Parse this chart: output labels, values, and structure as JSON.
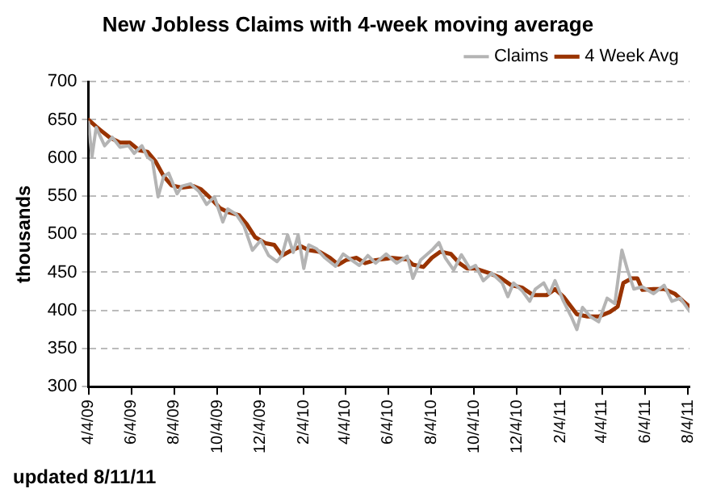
{
  "chart_data": {
    "type": "line",
    "title": "New Jobless Claims with 4-week moving average",
    "ylabel": "thousands",
    "xlim": [
      "2009-04-04",
      "2011-08-06"
    ],
    "xticks": [
      {
        "value": "2009-04-04",
        "label": "4/4/09"
      },
      {
        "value": "2009-06-04",
        "label": "6/4/09"
      },
      {
        "value": "2009-08-04",
        "label": "8/4/09"
      },
      {
        "value": "2009-10-04",
        "label": "10/4/09"
      },
      {
        "value": "2009-12-04",
        "label": "12/4/09"
      },
      {
        "value": "2010-02-04",
        "label": "2/4/10"
      },
      {
        "value": "2010-04-04",
        "label": "4/4/10"
      },
      {
        "value": "2010-06-04",
        "label": "6/4/10"
      },
      {
        "value": "2010-08-04",
        "label": "8/4/10"
      },
      {
        "value": "2010-10-04",
        "label": "10/4/10"
      },
      {
        "value": "2010-12-04",
        "label": "12/4/10"
      },
      {
        "value": "2011-02-04",
        "label": "2/4/11"
      },
      {
        "value": "2011-04-04",
        "label": "4/4/11"
      },
      {
        "value": "2011-06-04",
        "label": "6/4/11"
      },
      {
        "value": "2011-08-04",
        "label": "8/4/11"
      }
    ],
    "ylim": [
      300,
      700
    ],
    "yticks": [
      300,
      350,
      400,
      450,
      500,
      550,
      600,
      650,
      700
    ],
    "grid": "y",
    "legend": "top right",
    "marker": "none",
    "line_style": "solid",
    "annotations": [
      "updated 8/11/11"
    ],
    "series": [
      {
        "name": "Claims",
        "color": "#b4b4b4",
        "x": [
          "2009-04-04",
          "2009-04-09",
          "2009-04-15",
          "2009-04-27",
          "2009-05-08",
          "2009-05-19",
          "2009-05-31",
          "2009-06-08",
          "2009-06-19",
          "2009-06-27",
          "2009-07-04",
          "2009-07-12",
          "2009-07-20",
          "2009-07-27",
          "2009-08-08",
          "2009-08-15",
          "2009-08-27",
          "2009-09-08",
          "2009-09-19",
          "2009-09-30",
          "2009-10-12",
          "2009-10-19",
          "2009-10-31",
          "2009-11-11",
          "2009-11-23",
          "2009-12-05",
          "2009-12-16",
          "2009-12-28",
          "2010-01-04",
          "2010-01-12",
          "2010-01-20",
          "2010-01-27",
          "2010-02-04",
          "2010-02-11",
          "2010-02-22",
          "2010-03-06",
          "2010-03-21",
          "2010-04-01",
          "2010-04-13",
          "2010-04-24",
          "2010-05-06",
          "2010-05-17",
          "2010-06-01",
          "2010-06-16",
          "2010-07-01",
          "2010-07-09",
          "2010-07-20",
          "2010-08-05",
          "2010-08-15",
          "2010-08-24",
          "2010-09-05",
          "2010-09-16",
          "2010-09-28",
          "2010-10-06",
          "2010-10-17",
          "2010-10-29",
          "2010-11-13",
          "2010-11-21",
          "2010-11-29",
          "2010-12-11",
          "2010-12-22",
          "2010-12-30",
          "2011-01-11",
          "2011-01-19",
          "2011-01-27",
          "2011-02-08",
          "2011-02-19",
          "2011-02-27",
          "2011-03-07",
          "2011-03-18",
          "2011-03-30",
          "2011-04-11",
          "2011-04-22",
          "2011-05-02",
          "2011-05-10",
          "2011-05-19",
          "2011-05-31",
          "2011-06-16",
          "2011-07-01",
          "2011-07-12",
          "2011-07-24",
          "2011-08-06"
        ],
        "values": [
          647,
          601,
          640,
          616,
          627,
          614,
          616,
          606,
          616,
          601,
          596,
          549,
          576,
          580,
          553,
          563,
          566,
          556,
          539,
          549,
          516,
          533,
          526,
          511,
          479,
          492,
          472,
          464,
          472,
          499,
          476,
          499,
          455,
          486,
          481,
          469,
          458,
          474,
          466,
          459,
          472,
          462,
          474,
          462,
          471,
          442,
          466,
          479,
          489,
          469,
          453,
          473,
          455,
          459,
          439,
          449,
          436,
          418,
          436,
          426,
          412,
          428,
          436,
          422,
          439,
          412,
          392,
          375,
          404,
          392,
          385,
          416,
          409,
          479,
          453,
          428,
          431,
          422,
          433,
          412,
          416,
          399
        ]
      },
      {
        "name": "4 Week Avg",
        "color": "#993300",
        "x": [
          "2009-04-04",
          "2009-04-15",
          "2009-04-23",
          "2009-05-04",
          "2009-05-19",
          "2009-06-02",
          "2009-06-15",
          "2009-06-27",
          "2009-07-08",
          "2009-07-20",
          "2009-07-31",
          "2009-08-15",
          "2009-08-31",
          "2009-09-11",
          "2009-09-26",
          "2009-10-08",
          "2009-10-19",
          "2009-11-04",
          "2009-11-15",
          "2009-11-27",
          "2009-12-12",
          "2009-12-24",
          "2010-01-04",
          "2010-01-16",
          "2010-01-31",
          "2010-02-11",
          "2010-02-26",
          "2010-03-13",
          "2010-03-25",
          "2010-04-05",
          "2010-04-20",
          "2010-05-02",
          "2010-05-17",
          "2010-06-03",
          "2010-06-08",
          "2010-07-01",
          "2010-07-09",
          "2010-07-24",
          "2010-08-05",
          "2010-08-17",
          "2010-09-01",
          "2010-09-13",
          "2010-09-24",
          "2010-10-06",
          "2010-10-25",
          "2010-11-10",
          "2010-11-26",
          "2010-12-11",
          "2010-12-27",
          "2011-01-15",
          "2011-01-27",
          "2011-02-08",
          "2011-02-27",
          "2011-03-14",
          "2011-03-30",
          "2011-04-15",
          "2011-04-26",
          "2011-05-04",
          "2011-05-16",
          "2011-05-24",
          "2011-05-31",
          "2011-06-16",
          "2011-07-01",
          "2011-07-16",
          "2011-07-28",
          "2011-08-06"
        ],
        "values": [
          650,
          641,
          635,
          627,
          620,
          620,
          610,
          608,
          596,
          576,
          564,
          561,
          563,
          559,
          546,
          534,
          529,
          525,
          513,
          496,
          488,
          486,
          472,
          478,
          484,
          479,
          477,
          469,
          460,
          466,
          469,
          462,
          466,
          468,
          469,
          467,
          460,
          457,
          469,
          477,
          474,
          462,
          455,
          455,
          449,
          443,
          433,
          430,
          420,
          420,
          428,
          418,
          395,
          392,
          392,
          398,
          405,
          436,
          442,
          442,
          427,
          428,
          428,
          422,
          412,
          405
        ]
      }
    ]
  }
}
